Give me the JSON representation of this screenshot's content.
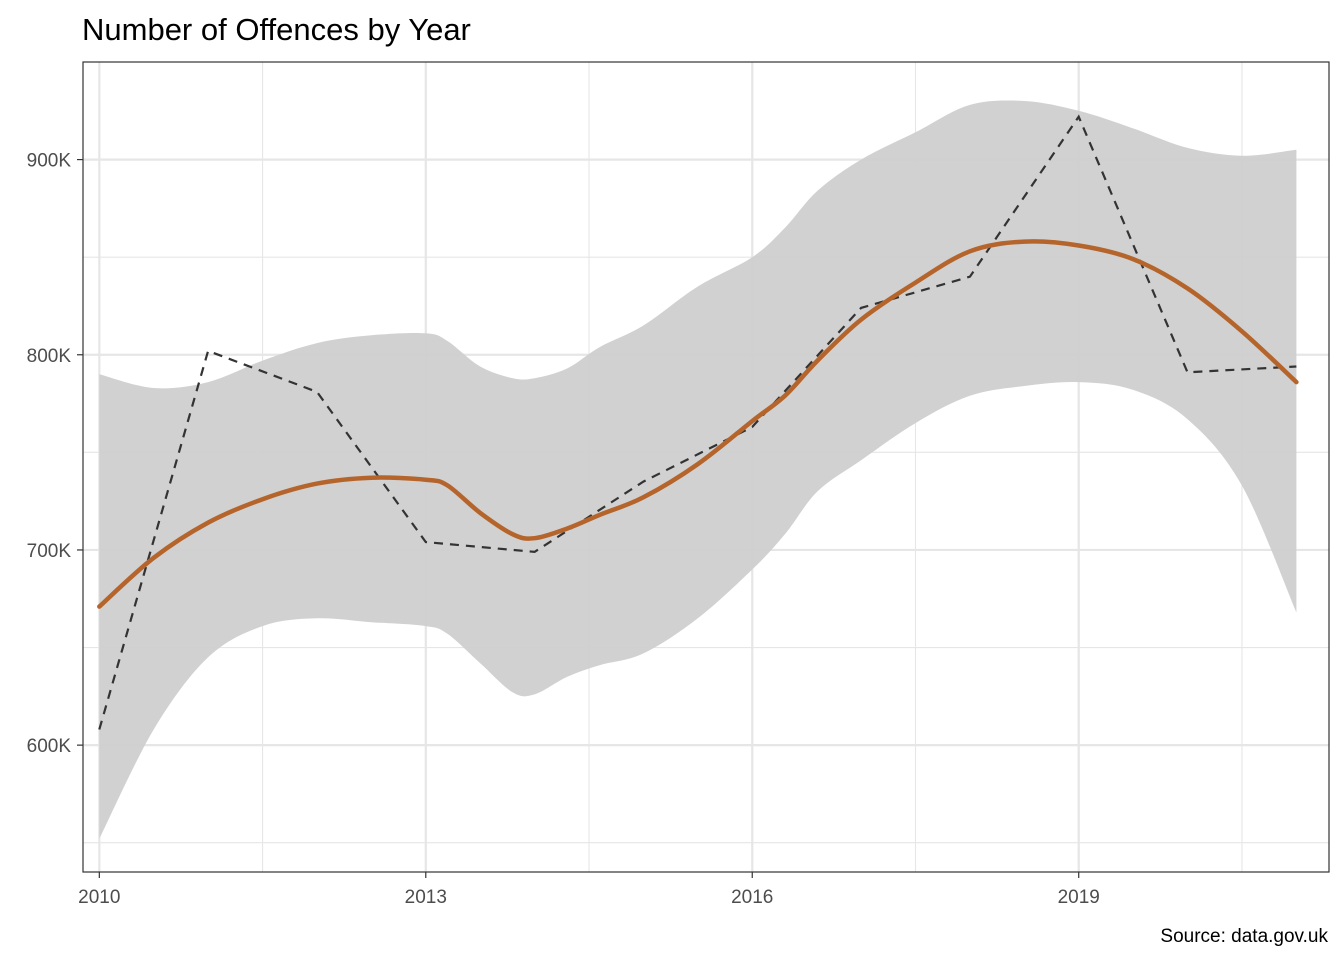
{
  "chart_data": {
    "type": "line",
    "title": "Number of Offences by Year",
    "caption": "Source: data.gov.uk",
    "xlabel": "",
    "ylabel": "",
    "xlim": [
      2009.85,
      2021.3
    ],
    "ylim": [
      535000,
      950000
    ],
    "x_ticks": [
      2010,
      2013,
      2016,
      2019
    ],
    "x_tick_labels": [
      "2010",
      "2013",
      "2016",
      "2019"
    ],
    "x_minor_ticks": [
      2011.5,
      2014.5,
      2017.5,
      2020.5
    ],
    "y_ticks": [
      600000,
      700000,
      800000,
      900000
    ],
    "y_tick_labels": [
      "600K",
      "700K",
      "800K",
      "900K"
    ],
    "y_minor_ticks": [
      550000,
      650000,
      750000,
      850000
    ],
    "grid": true,
    "colors": {
      "observed": "#333333",
      "smooth": "#b5652b",
      "band": "#cfcfcf",
      "grid": "#e6e6e6"
    },
    "series": [
      {
        "style": "dashed",
        "x": [
          2010,
          2011,
          2012,
          2013,
          2014,
          2015,
          2016,
          2017,
          2018,
          2019,
          2020,
          2021
        ],
        "y": [
          608000,
          802000,
          781000,
          704000,
          699000,
          735000,
          763000,
          824000,
          840000,
          922000,
          791000,
          794000
        ]
      },
      {
        "style": "smooth",
        "x": [
          2010,
          2010.5,
          2011,
          2011.5,
          2012,
          2012.5,
          2013,
          2013.2,
          2013.5,
          2013.8,
          2014,
          2014.3,
          2014.6,
          2015,
          2015.5,
          2016,
          2016.3,
          2016.6,
          2017,
          2017.5,
          2018,
          2018.5,
          2019,
          2019.5,
          2020,
          2020.5,
          2021
        ],
        "y": [
          671000,
          696000,
          714000,
          726000,
          734000,
          737000,
          736000,
          733000,
          719000,
          708000,
          706000,
          711000,
          718000,
          727000,
          744000,
          766000,
          779000,
          797000,
          818000,
          837000,
          853000,
          858000,
          856000,
          849000,
          834000,
          812000,
          786000
        ]
      }
    ],
    "confidence_band": {
      "x": [
        2010,
        2010.5,
        2011,
        2011.5,
        2012,
        2012.5,
        2013,
        2013.2,
        2013.5,
        2013.8,
        2014,
        2014.3,
        2014.6,
        2015,
        2015.5,
        2016,
        2016.3,
        2016.6,
        2017,
        2017.5,
        2018,
        2018.5,
        2019,
        2019.5,
        2020,
        2020.5,
        2021
      ],
      "upper": [
        790000,
        783000,
        786000,
        797000,
        806000,
        810000,
        811000,
        807000,
        794000,
        788000,
        788000,
        793000,
        804000,
        815000,
        835000,
        850000,
        865000,
        884000,
        900000,
        914000,
        928000,
        930000,
        925000,
        916000,
        906000,
        902000,
        905000
      ],
      "lower": [
        552000,
        608000,
        645000,
        661000,
        665000,
        663000,
        661000,
        657000,
        642000,
        627000,
        626000,
        635000,
        641000,
        647000,
        665000,
        690000,
        708000,
        730000,
        746000,
        765000,
        779000,
        784000,
        786000,
        782000,
        767000,
        733000,
        668000
      ]
    }
  }
}
